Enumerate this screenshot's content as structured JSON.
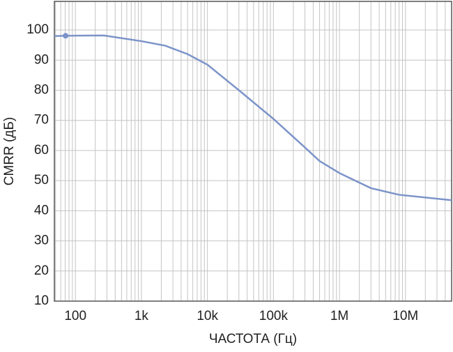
{
  "chart_data": {
    "type": "line",
    "xlabel": "ЧАСТОТА (Гц)",
    "ylabel": "CMRR (дБ)",
    "x": [
      48,
      71,
      270,
      1000,
      2300,
      5000,
      10000,
      30000,
      100000,
      300000,
      500000,
      1000000,
      3000000,
      8000000,
      50000000
    ],
    "series": [
      {
        "color": "#7b93c9",
        "values": [
          98,
          98.1,
          98.2,
          96.3,
          94.8,
          92,
          88.5,
          80,
          70.5,
          61,
          56.5,
          52.5,
          47.5,
          45.3,
          43.5
        ]
      }
    ],
    "markers": {
      "x": [
        71
      ],
      "values": [
        98.1
      ],
      "color": "#7b93c9"
    },
    "xlog": true,
    "xlim": [
      48,
      50000000
    ],
    "xticks": [
      100,
      {
        "value": 1000,
        "label": "1k"
      },
      {
        "value": 10000,
        "label": "10k"
      },
      {
        "value": 100000,
        "label": "100k"
      },
      {
        "value": 1000000,
        "label": "1M"
      },
      {
        "value": 10000000,
        "label": "10M"
      }
    ],
    "ylim": [
      10,
      109.5
    ],
    "yticks": [
      10,
      20,
      30,
      40,
      50,
      60,
      70,
      80,
      90,
      100
    ],
    "grid": true,
    "minor_grid": true
  }
}
